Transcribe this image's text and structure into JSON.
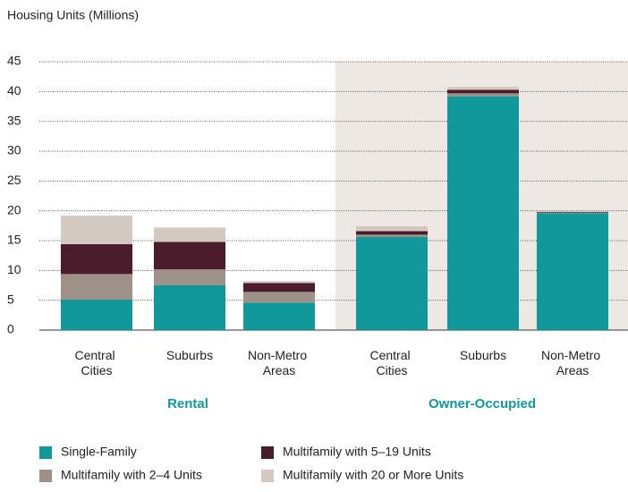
{
  "chart_data": {
    "type": "stacked_bar",
    "y_axis_label": "Housing Units (Millions)",
    "categories": [
      "Central Cities",
      "Suburbs",
      "Non-Metro Areas",
      "Central Cities",
      "Suburbs",
      "Non-Metro Areas"
    ],
    "groups": [
      "Rental",
      "Owner-Occupied"
    ],
    "series": [
      {
        "name": "Single-Family",
        "color": "#10989b",
        "values": [
          5.1,
          7.5,
          4.6,
          15.6,
          39.2,
          19.6
        ]
      },
      {
        "name": "Multifamily with 2–4 Units",
        "color": "#9d9188",
        "values": [
          4.3,
          2.7,
          1.8,
          0.4,
          0.5,
          0.1
        ]
      },
      {
        "name": "Multifamily with 5–19 Units",
        "color": "#4a1c2c",
        "values": [
          5.0,
          4.6,
          1.5,
          0.6,
          0.6,
          0.1
        ]
      },
      {
        "name": "Multifamily with 20 or More Units",
        "color": "#d3c9c0",
        "values": [
          4.8,
          2.4,
          0.3,
          0.8,
          0.5,
          0.1
        ]
      }
    ],
    "ylim": [
      0,
      45
    ],
    "yticks": [
      0,
      5,
      10,
      15,
      20,
      25,
      30,
      35,
      40,
      45
    ],
    "grid": true
  }
}
